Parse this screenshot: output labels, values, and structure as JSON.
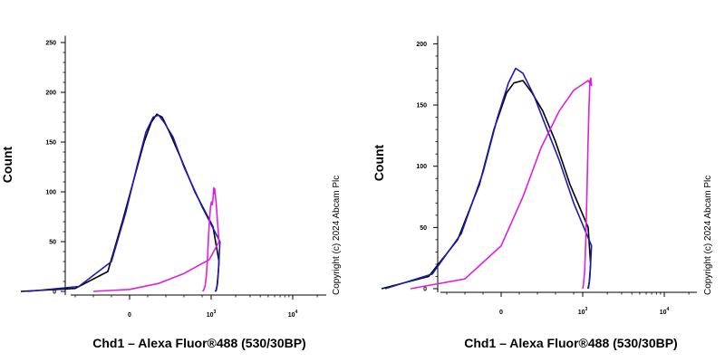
{
  "chart_data": [
    {
      "type": "line",
      "xlabel": "Chd1 – Alexa Fluor®488 (530/30BP)",
      "ylabel": "Count",
      "x_scale": "biexponential",
      "x_ticks": [
        {
          "value": 0,
          "base": "0",
          "exp": ""
        },
        {
          "value": 1000,
          "base": "10",
          "exp": "3"
        },
        {
          "value": 10000,
          "base": "10",
          "exp": "4"
        }
      ],
      "y_ticks": [
        "0",
        "50",
        "100",
        "150",
        "200",
        "250"
      ],
      "ylim": [
        0,
        255
      ],
      "annotation": "Copyright (c) 2024 Abcam Plc",
      "series": [
        {
          "color": "#000000",
          "values": [
            [
              -300,
              0
            ],
            [
              -150,
              3
            ],
            [
              -60,
              20
            ],
            [
              -20,
              70
            ],
            [
              10,
              110
            ],
            [
              40,
              150
            ],
            [
              60,
              170
            ],
            [
              75,
              178
            ],
            [
              90,
              175
            ],
            [
              110,
              160
            ],
            [
              140,
              135
            ],
            [
              180,
              100
            ],
            [
              230,
              65
            ],
            [
              300,
              30
            ],
            [
              380,
              8
            ],
            [
              460,
              1
            ],
            [
              550,
              0
            ]
          ]
        },
        {
          "color": "#1c1cb4",
          "values": [
            [
              -280,
              0
            ],
            [
              -140,
              5
            ],
            [
              -50,
              30
            ],
            [
              -10,
              80
            ],
            [
              20,
              125
            ],
            [
              45,
              160
            ],
            [
              65,
              175
            ],
            [
              80,
              177
            ],
            [
              95,
              170
            ],
            [
              120,
              155
            ],
            [
              150,
              125
            ],
            [
              200,
              85
            ],
            [
              260,
              50
            ],
            [
              330,
              20
            ],
            [
              410,
              5
            ],
            [
              500,
              0
            ]
          ]
        },
        {
          "color": "#e01ee0",
          "values": [
            [
              -100,
              0
            ],
            [
              0,
              2
            ],
            [
              80,
              8
            ],
            [
              150,
              18
            ],
            [
              220,
              32
            ],
            [
              300,
              50
            ],
            [
              380,
              70
            ],
            [
              460,
              88
            ],
            [
              530,
              97
            ],
            [
              580,
              103
            ],
            [
              630,
              98
            ],
            [
              680,
              104
            ],
            [
              750,
              93
            ],
            [
              850,
              87
            ],
            [
              960,
              90
            ],
            [
              1100,
              85
            ],
            [
              1280,
              72
            ],
            [
              1500,
              55
            ],
            [
              1800,
              30
            ],
            [
              2100,
              15
            ],
            [
              2500,
              6
            ],
            [
              3000,
              2
            ],
            [
              3600,
              0
            ]
          ]
        }
      ]
    },
    {
      "type": "line",
      "xlabel": "Chd1 – Alexa Fluor®488 (530/30BP)",
      "ylabel": "Count",
      "x_scale": "biexponential",
      "x_ticks": [
        {
          "value": 0,
          "base": "0",
          "exp": ""
        },
        {
          "value": 1000,
          "base": "10",
          "exp": "3"
        },
        {
          "value": 10000,
          "base": "10",
          "exp": "4"
        }
      ],
      "y_ticks": [
        "0",
        "50",
        "100",
        "150",
        "200"
      ],
      "ylim": [
        0,
        205
      ],
      "annotation": "Copyright (c) 2024 Abcam Plc",
      "series": [
        {
          "color": "#000000",
          "values": [
            [
              -330,
              0
            ],
            [
              -200,
              10
            ],
            [
              -120,
              40
            ],
            [
              -60,
              85
            ],
            [
              -20,
              130
            ],
            [
              15,
              160
            ],
            [
              35,
              168
            ],
            [
              60,
              170
            ],
            [
              85,
              160
            ],
            [
              115,
              145
            ],
            [
              150,
              120
            ],
            [
              190,
              85
            ],
            [
              240,
              50
            ],
            [
              300,
              20
            ],
            [
              370,
              5
            ],
            [
              450,
              0
            ]
          ]
        },
        {
          "color": "#1c1cb4",
          "values": [
            [
              -320,
              0
            ],
            [
              -190,
              12
            ],
            [
              -110,
              45
            ],
            [
              -50,
              95
            ],
            [
              -10,
              140
            ],
            [
              20,
              168
            ],
            [
              40,
              180
            ],
            [
              60,
              176
            ],
            [
              90,
              158
            ],
            [
              120,
              135
            ],
            [
              160,
              105
            ],
            [
              200,
              70
            ],
            [
              260,
              35
            ],
            [
              330,
              10
            ],
            [
              420,
              0
            ]
          ]
        },
        {
          "color": "#e01ee0",
          "values": [
            [
              -250,
              0
            ],
            [
              -100,
              8
            ],
            [
              0,
              35
            ],
            [
              60,
              75
            ],
            [
              110,
              115
            ],
            [
              160,
              145
            ],
            [
              200,
              162
            ],
            [
              240,
              170
            ],
            [
              260,
              166
            ],
            [
              290,
              172
            ],
            [
              330,
              170
            ],
            [
              380,
              150
            ],
            [
              440,
              120
            ],
            [
              520,
              80
            ],
            [
              620,
              40
            ],
            [
              740,
              15
            ],
            [
              880,
              4
            ],
            [
              1000,
              0
            ]
          ]
        }
      ]
    }
  ]
}
